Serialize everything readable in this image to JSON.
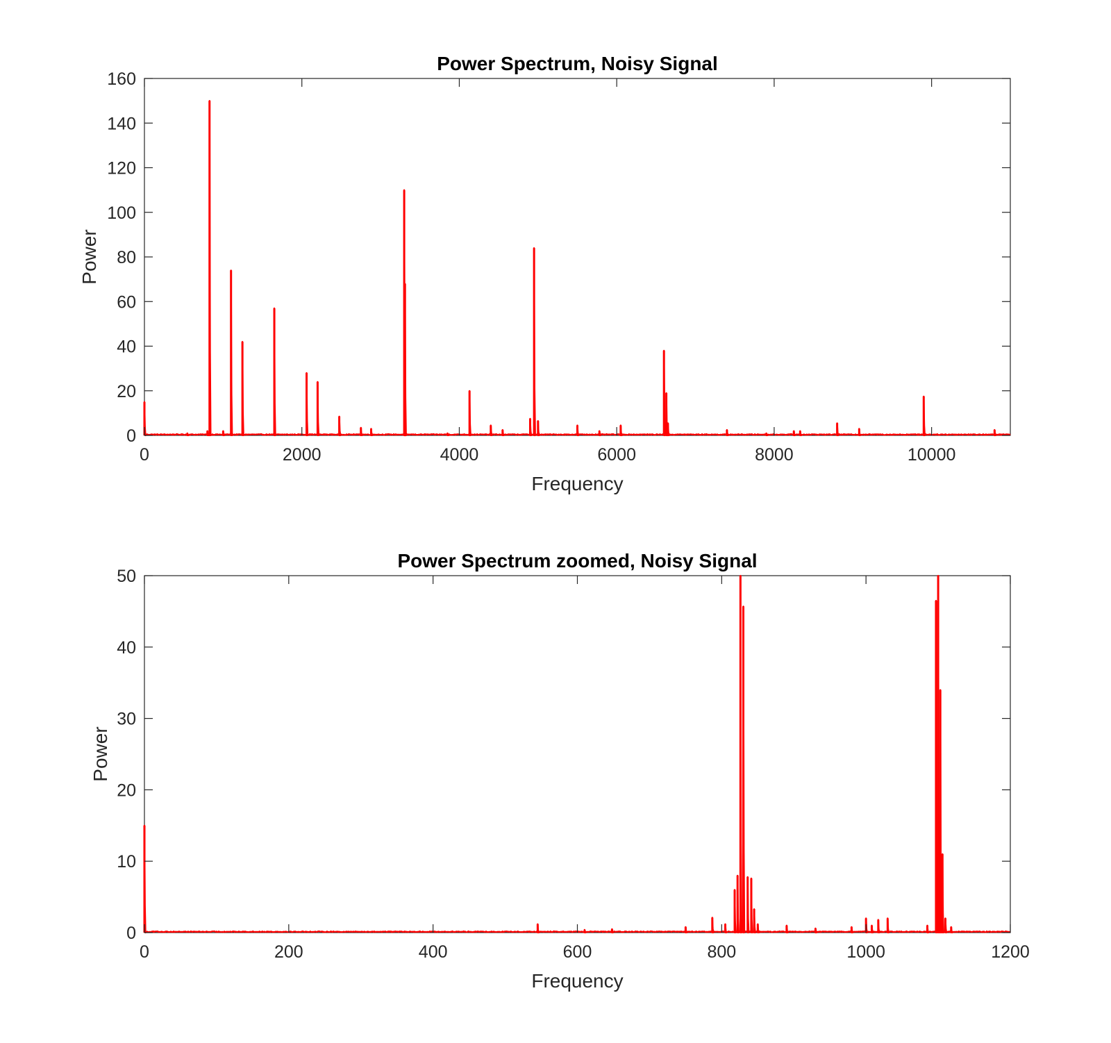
{
  "chart_data": [
    {
      "type": "line",
      "title": "Power Spectrum, Noisy Signal",
      "xlabel": "Frequency",
      "ylabel": "Power",
      "xlim": [
        0,
        11000
      ],
      "ylim": [
        0,
        160
      ],
      "xticks": [
        0,
        2000,
        4000,
        6000,
        8000,
        10000
      ],
      "yticks": [
        0,
        20,
        40,
        60,
        80,
        100,
        120,
        140,
        160
      ],
      "grid": false,
      "legend": "none",
      "color": "#ff0000",
      "peaks": [
        {
          "x": 0,
          "y": 15
        },
        {
          "x": 545,
          "y": 1
        },
        {
          "x": 800,
          "y": 2
        },
        {
          "x": 827,
          "y": 150
        },
        {
          "x": 1000,
          "y": 2
        },
        {
          "x": 1100,
          "y": 74
        },
        {
          "x": 1245,
          "y": 42
        },
        {
          "x": 1650,
          "y": 57
        },
        {
          "x": 2060,
          "y": 28
        },
        {
          "x": 2200,
          "y": 24
        },
        {
          "x": 2475,
          "y": 8.5
        },
        {
          "x": 2750,
          "y": 3.5
        },
        {
          "x": 2880,
          "y": 3
        },
        {
          "x": 3300,
          "y": 110
        },
        {
          "x": 3310,
          "y": 68
        },
        {
          "x": 3850,
          "y": 1
        },
        {
          "x": 4130,
          "y": 20
        },
        {
          "x": 4400,
          "y": 4.5
        },
        {
          "x": 4550,
          "y": 2.5
        },
        {
          "x": 4900,
          "y": 7.5
        },
        {
          "x": 4950,
          "y": 84
        },
        {
          "x": 5000,
          "y": 6.5
        },
        {
          "x": 5500,
          "y": 4.5
        },
        {
          "x": 5780,
          "y": 2
        },
        {
          "x": 6050,
          "y": 4.5
        },
        {
          "x": 6600,
          "y": 38
        },
        {
          "x": 6630,
          "y": 19
        },
        {
          "x": 6650,
          "y": 5.5
        },
        {
          "x": 7400,
          "y": 2.5
        },
        {
          "x": 7900,
          "y": 1
        },
        {
          "x": 8250,
          "y": 2
        },
        {
          "x": 8330,
          "y": 2
        },
        {
          "x": 8800,
          "y": 5.5
        },
        {
          "x": 9080,
          "y": 3
        },
        {
          "x": 9900,
          "y": 17.5
        },
        {
          "x": 10800,
          "y": 2.5
        }
      ]
    },
    {
      "type": "line",
      "title": "Power Spectrum zoomed, Noisy Signal",
      "xlabel": "Frequency",
      "ylabel": "Power",
      "xlim": [
        0,
        1200
      ],
      "ylim": [
        0,
        50
      ],
      "xticks": [
        0,
        200,
        400,
        600,
        800,
        1000,
        1200
      ],
      "yticks": [
        0,
        10,
        20,
        30,
        40,
        50
      ],
      "grid": false,
      "legend": "none",
      "color": "#ff0000",
      "peaks": [
        {
          "x": 0,
          "y": 15
        },
        {
          "x": 545,
          "y": 1.2
        },
        {
          "x": 610,
          "y": 0.4
        },
        {
          "x": 648,
          "y": 0.5
        },
        {
          "x": 750,
          "y": 0.8
        },
        {
          "x": 787,
          "y": 2.1
        },
        {
          "x": 805,
          "y": 1.2
        },
        {
          "x": 818,
          "y": 6
        },
        {
          "x": 822,
          "y": 8
        },
        {
          "x": 826,
          "y": 50
        },
        {
          "x": 830,
          "y": 45.7
        },
        {
          "x": 836,
          "y": 7.8
        },
        {
          "x": 841,
          "y": 7.6
        },
        {
          "x": 845,
          "y": 3.3
        },
        {
          "x": 850,
          "y": 1.2
        },
        {
          "x": 890,
          "y": 1
        },
        {
          "x": 930,
          "y": 0.6
        },
        {
          "x": 980,
          "y": 0.8
        },
        {
          "x": 1000,
          "y": 2
        },
        {
          "x": 1008,
          "y": 1
        },
        {
          "x": 1017,
          "y": 1.8
        },
        {
          "x": 1030,
          "y": 2
        },
        {
          "x": 1085,
          "y": 1
        },
        {
          "x": 1097,
          "y": 46.5
        },
        {
          "x": 1100,
          "y": 50
        },
        {
          "x": 1103,
          "y": 34
        },
        {
          "x": 1106,
          "y": 11
        },
        {
          "x": 1110,
          "y": 2
        },
        {
          "x": 1118,
          "y": 0.8
        }
      ]
    }
  ]
}
